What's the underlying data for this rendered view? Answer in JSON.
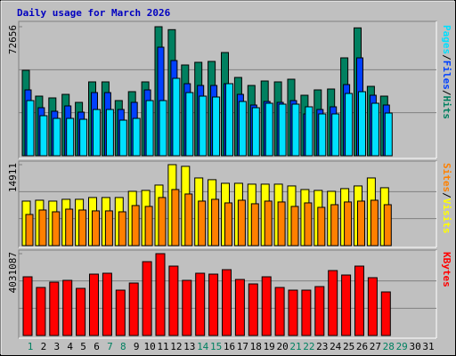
{
  "chart_data": [
    {
      "type": "bar",
      "title": "Daily usage for March 2026",
      "separator": "/",
      "ylim": [
        0,
        72656
      ],
      "yticks": [
        72656
      ],
      "series": [
        {
          "name": "Hits",
          "color": "#008060",
          "values": [
            48100,
            33570,
            32570,
            34570,
            30060,
            41590,
            41590,
            31070,
            36080,
            41590,
            72656,
            71000,
            51110,
            52610,
            53110,
            58120,
            44090,
            39580,
            42090,
            41590,
            43090,
            34070,
            37080,
            37580,
            55120,
            72000,
            39080,
            33570,
            null,
            null,
            null
          ]
        },
        {
          "name": "Files",
          "color": "#0040ff",
          "values": [
            37070,
            27050,
            25050,
            28060,
            24550,
            35570,
            35570,
            26050,
            30060,
            37070,
            61120,
            53610,
            40580,
            39580,
            39580,
            40580,
            34570,
            28560,
            30560,
            30060,
            31060,
            23550,
            26050,
            27560,
            40080,
            55110,
            34070,
            28560,
            null,
            null,
            null
          ]
        },
        {
          "name": "Pages",
          "color": "#00e0ff",
          "values": [
            31060,
            22550,
            21040,
            21040,
            20540,
            26050,
            26050,
            20040,
            21040,
            31060,
            31060,
            43590,
            35570,
            33570,
            33070,
            40580,
            30560,
            27050,
            29560,
            29060,
            29060,
            27560,
            23550,
            23550,
            35070,
            36070,
            29560,
            24050,
            null,
            null,
            null
          ]
        }
      ]
    },
    {
      "type": "bar",
      "separator": "/",
      "ylim": [
        0,
        14911
      ],
      "yticks": [
        14911
      ],
      "series": [
        {
          "name": "Visits",
          "color": "#ffff00",
          "values": [
            8200,
            8360,
            8200,
            8530,
            8530,
            8860,
            8860,
            8860,
            10000,
            10170,
            11150,
            14911,
            14600,
            12460,
            12140,
            11480,
            11480,
            11320,
            11320,
            11320,
            10990,
            10330,
            10170,
            10000,
            10500,
            10990,
            12460,
            10660,
            null,
            null,
            null
          ]
        },
        {
          "name": "Sites",
          "color": "#ff8000",
          "values": [
            5740,
            6560,
            6230,
            6720,
            6560,
            6400,
            6400,
            6230,
            7380,
            7220,
            8860,
            10330,
            9510,
            8200,
            8530,
            7870,
            8360,
            7710,
            8200,
            8040,
            7220,
            7870,
            7050,
            7540,
            8040,
            8200,
            8360,
            7540,
            null,
            null,
            null
          ]
        }
      ]
    },
    {
      "type": "bar",
      "ylim": [
        0,
        4031087
      ],
      "yticks": [
        4031087
      ],
      "categories": [
        "1",
        "2",
        "3",
        "4",
        "5",
        "6",
        "7",
        "8",
        "9",
        "10",
        "11",
        "12",
        "13",
        "14",
        "15",
        "16",
        "17",
        "18",
        "19",
        "20",
        "21",
        "22",
        "23",
        "24",
        "25",
        "26",
        "27",
        "28",
        "29",
        "30",
        "31"
      ],
      "category_colors": [
        "#008060",
        "#000000",
        "#000000",
        "#000000",
        "#000000",
        "#000000",
        "#008060",
        "#008060",
        "#000000",
        "#000000",
        "#000000",
        "#000000",
        "#000000",
        "#008060",
        "#008060",
        "#000000",
        "#000000",
        "#000000",
        "#000000",
        "#000000",
        "#008060",
        "#008060",
        "#000000",
        "#000000",
        "#000000",
        "#000000",
        "#000000",
        "#008060",
        "#008060",
        "#000000",
        "#000000"
      ],
      "series": [
        {
          "name": "KBytes",
          "color": "#ff0000",
          "values": [
            2891900,
            2366100,
            2629000,
            2716600,
            2322200,
            3023300,
            3067100,
            2234600,
            2585100,
            3636700,
            4031087,
            3417600,
            2716600,
            3067100,
            3023300,
            3242400,
            2760400,
            2541300,
            2891900,
            2366100,
            2234600,
            2234600,
            2409900,
            3198600,
            2979500,
            3417600,
            2848000,
            2147000,
            null,
            null,
            null
          ]
        }
      ]
    }
  ]
}
